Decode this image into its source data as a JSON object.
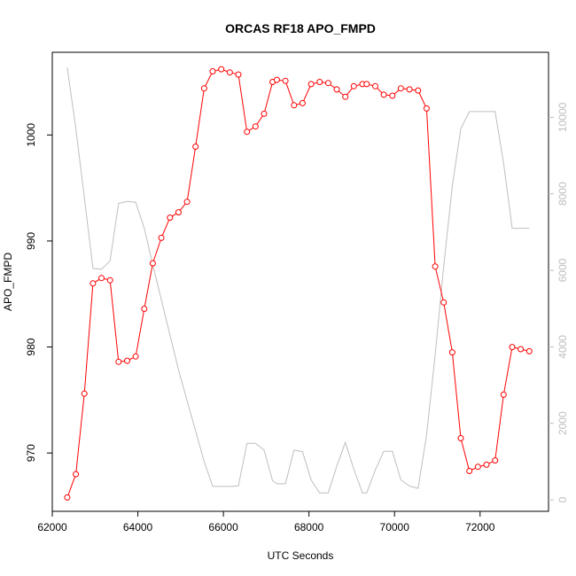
{
  "chart_data": {
    "type": "line",
    "title": "ORCAS RF18 APO_FMPD",
    "xlabel": "UTC Seconds",
    "ylabel": "APO_FMPD",
    "xlim": [
      62000,
      73600
    ],
    "ylim": [
      964.5,
      1007.8
    ],
    "y2lim": [
      -300,
      11700
    ],
    "x_ticks": [
      62000,
      64000,
      66000,
      68000,
      70000,
      72000
    ],
    "y_ticks": [
      970,
      980,
      990,
      1000
    ],
    "y2_ticks": [
      0,
      2000,
      4000,
      6000,
      8000,
      10000
    ],
    "colors": {
      "primary": "#ff0000",
      "secondary": "#bebebe",
      "frame": "#000000"
    },
    "series": [
      {
        "axis": "left",
        "style": "line+points",
        "x": [
          62350,
          62550,
          62750,
          62950,
          63150,
          63350,
          63550,
          63750,
          63950,
          64150,
          64350,
          64550,
          64750,
          64950,
          65150,
          65350,
          65550,
          65750,
          65950,
          66150,
          66350,
          66550,
          66750,
          66950,
          67150,
          67250,
          67450,
          67650,
          67850,
          68050,
          68250,
          68450,
          68650,
          68850,
          69050,
          69250,
          69350,
          69550,
          69750,
          69950,
          70150,
          70350,
          70550,
          70750,
          70950,
          71150,
          71350,
          71550,
          71750,
          71950,
          72150,
          72350,
          72550,
          72750,
          72950,
          73150
        ],
        "y": [
          965.8,
          968.0,
          975.6,
          986.0,
          986.5,
          986.3,
          978.6,
          978.7,
          979.1,
          983.6,
          987.9,
          990.3,
          992.2,
          992.7,
          993.7,
          998.9,
          1004.4,
          1006.0,
          1006.2,
          1005.9,
          1005.7,
          1000.3,
          1000.8,
          1002.0,
          1005.0,
          1005.2,
          1005.1,
          1002.8,
          1003.0,
          1004.8,
          1005.0,
          1004.9,
          1004.3,
          1003.6,
          1004.6,
          1004.8,
          1004.8,
          1004.6,
          1003.8,
          1003.7,
          1004.4,
          1004.3,
          1004.2,
          1002.5,
          987.6,
          984.2,
          979.5,
          971.4,
          968.3,
          968.7,
          968.9,
          969.3,
          975.5,
          980.0,
          979.8,
          979.6
        ]
      },
      {
        "axis": "right",
        "style": "line",
        "x": [
          62350,
          62550,
          62750,
          62950,
          63150,
          63350,
          63550,
          63750,
          63950,
          64150,
          64350,
          64950,
          65550,
          65750,
          65950,
          66150,
          66350,
          66550,
          66750,
          66950,
          67150,
          67250,
          67450,
          67650,
          67850,
          68050,
          68250,
          68450,
          68650,
          68850,
          69050,
          69250,
          69350,
          69550,
          69750,
          69950,
          70150,
          70350,
          70550,
          70750,
          70950,
          71150,
          71350,
          71550,
          71750,
          71950,
          72150,
          72350,
          72550,
          72750,
          72950,
          73150
        ],
        "y": [
          11300,
          9700,
          7900,
          6050,
          6030,
          6250,
          7750,
          7800,
          7780,
          7100,
          6150,
          3400,
          1000,
          350,
          350,
          350,
          360,
          1480,
          1480,
          1300,
          500,
          420,
          420,
          1300,
          1260,
          520,
          180,
          180,
          880,
          1500,
          800,
          180,
          180,
          780,
          1270,
          1270,
          520,
          360,
          300,
          1700,
          3800,
          6100,
          8200,
          9700,
          10150,
          10150,
          10150,
          10150,
          8800,
          7100,
          7100,
          7100
        ]
      }
    ]
  }
}
